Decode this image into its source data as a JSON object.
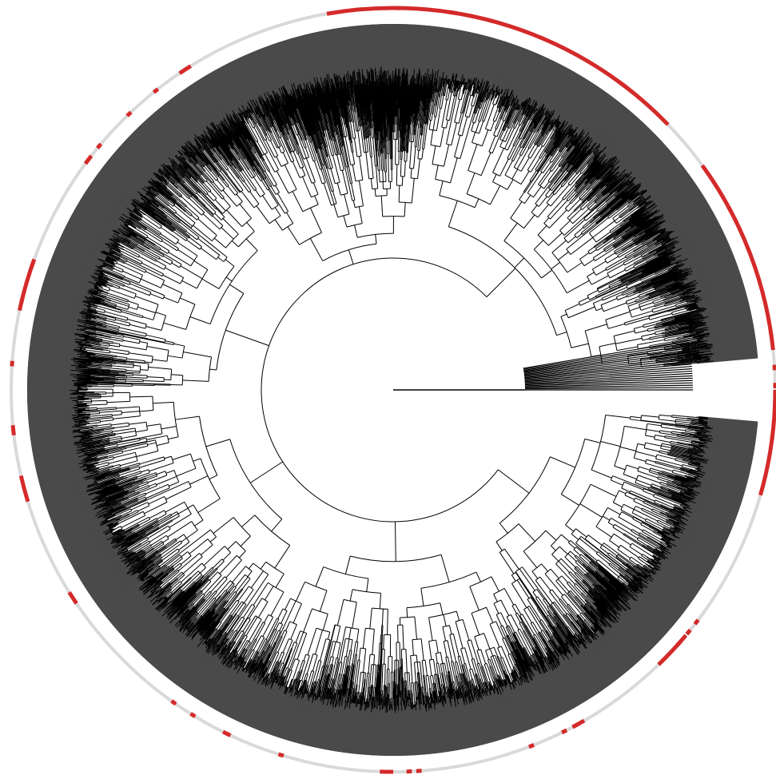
{
  "figure": {
    "type": "circular-phylogenetic-tree",
    "labels_visible": false,
    "colors": {
      "background": "#ffffff",
      "branches": "#000000",
      "tip_fan": "#4a4a4a",
      "outer_ring_base": "#d9d9d9",
      "outer_ring_highlight": "#d42a2a"
    },
    "annotation_ring": {
      "highlighted_segments_deg": [
        [
          -16,
          0
        ],
        [
          6,
          36
        ],
        [
          44,
          100
        ],
        [
          160,
          168
        ],
        [
          193,
          197
        ],
        [
          268,
          270
        ],
        [
          -46,
          -40
        ],
        [
          -62,
          -60
        ],
        [
          122,
          124
        ],
        [
          212,
          214
        ]
      ]
    }
  }
}
